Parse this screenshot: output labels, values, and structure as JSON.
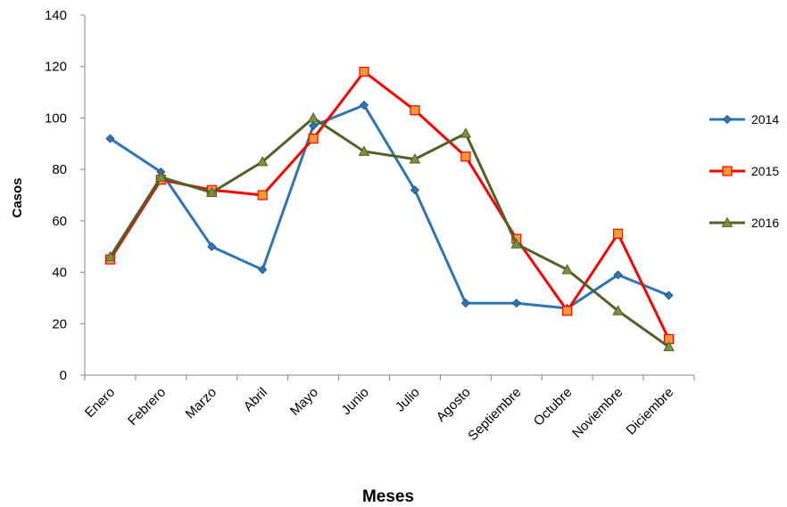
{
  "chart_data": {
    "type": "line",
    "title": "",
    "xlabel": "Meses",
    "ylabel": "Casos",
    "ylim": [
      0,
      140
    ],
    "yticks": [
      "0",
      "20",
      "40",
      "60",
      "80",
      "100",
      "120",
      "140"
    ],
    "grid": false,
    "legend_position": "right",
    "categories": [
      "Enero",
      "Febrero",
      "Marzo",
      "Abril",
      "Mayo",
      "Junio",
      "Julio",
      "Agosto",
      "Septiembre",
      "Octubre",
      "Noviembre",
      "Diciembre"
    ],
    "series": [
      {
        "name": "2014",
        "color": "#2E75B6",
        "marker": "diamond",
        "values": [
          92,
          79,
          50,
          41,
          97,
          105,
          72,
          28,
          28,
          26,
          39,
          31
        ]
      },
      {
        "name": "2015",
        "color": "#FF0000",
        "marker": "square",
        "values": [
          45,
          76,
          72,
          70,
          92,
          118,
          103,
          85,
          53,
          25,
          55,
          14
        ]
      },
      {
        "name": "2016",
        "color": "#4F6228",
        "marker": "triangle",
        "values": [
          46,
          77,
          71,
          83,
          100,
          87,
          84,
          94,
          51,
          41,
          25,
          11
        ]
      }
    ]
  }
}
